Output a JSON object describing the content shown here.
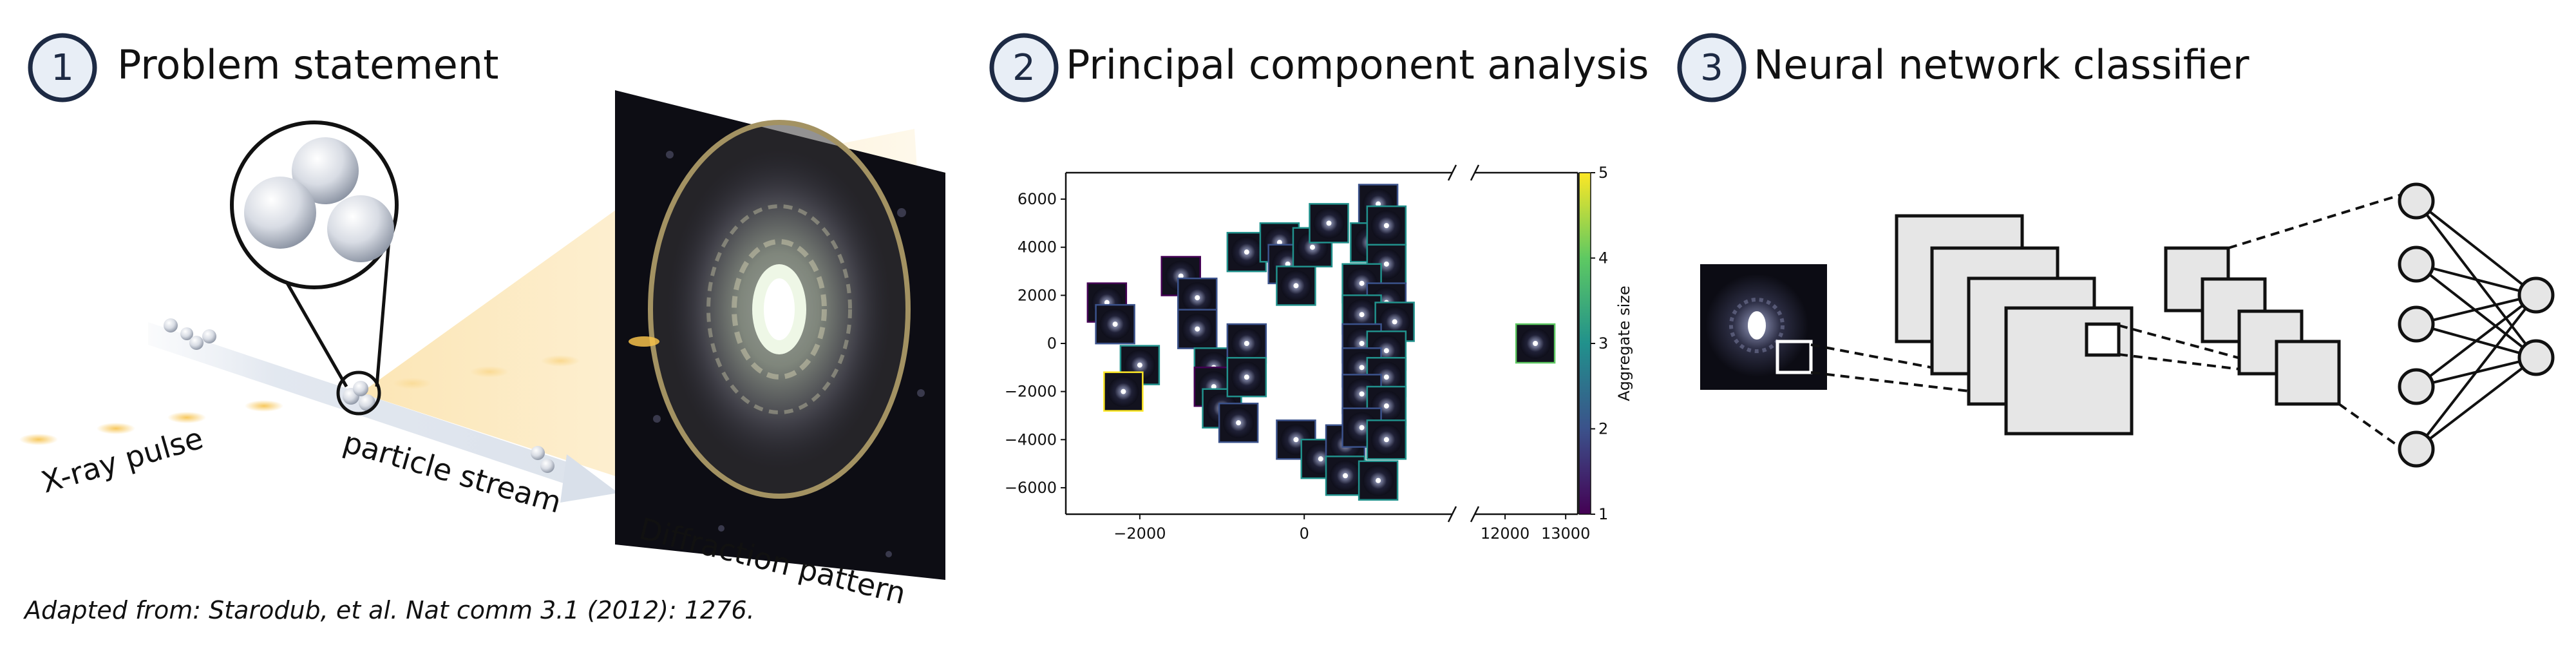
{
  "panels": [
    {
      "number": "1",
      "title": "Problem statement"
    },
    {
      "number": "2",
      "title": "Principal component analysis"
    },
    {
      "number": "3",
      "title": "Neural network classifier"
    }
  ],
  "labels": {
    "xray": "X-ray pulse",
    "stream": "particle stream",
    "diffraction": "Diffraction pattern"
  },
  "footnote": "Adapted from: Starodub, et al. Nat comm 3.1 (2012): 1276.",
  "colors": {
    "circle_stroke": "#1d2a44",
    "beam": "#f6c14a",
    "stream": "#dde4ee",
    "panel_fill": "#e6e6e6",
    "detector": "#0d0d14"
  },
  "chart_data": {
    "type": "scatter",
    "title": "",
    "xlabel": "",
    "ylabel": "",
    "xlim_main": [
      -2900,
      1800
    ],
    "xlim_break": [
      11500,
      13200
    ],
    "ylim": [
      -7100,
      7100
    ],
    "x_ticks": [
      -2000,
      0,
      12000,
      13000
    ],
    "x_tick_labels": [
      "−2000",
      "0",
      "12000",
      "13000"
    ],
    "y_ticks": [
      6000,
      4000,
      2000,
      0,
      -2000,
      -4000,
      -6000
    ],
    "y_tick_labels": [
      "6000",
      "4000",
      "2000",
      "0",
      "−2000",
      "−4000",
      "−6000"
    ],
    "axis_break": true,
    "marker": "diffraction-thumbnail",
    "colorbar": {
      "label": "Aggregate size",
      "ticks": [
        1,
        2,
        3,
        4,
        5
      ],
      "tick_labels": [
        "1",
        "2",
        "3",
        "4",
        "5"
      ],
      "colormap": [
        "#440154",
        "#3b528b",
        "#21918c",
        "#5ec962",
        "#fde725"
      ]
    },
    "points": [
      {
        "x": -2400,
        "y": 1700,
        "size": 1
      },
      {
        "x": -2300,
        "y": 800,
        "size": 2
      },
      {
        "x": -2000,
        "y": -900,
        "size": 3
      },
      {
        "x": -2200,
        "y": -2000,
        "size": 5
      },
      {
        "x": -1500,
        "y": 2800,
        "size": 1
      },
      {
        "x": -1300,
        "y": 1900,
        "size": 2
      },
      {
        "x": -1300,
        "y": 600,
        "size": 2
      },
      {
        "x": -1100,
        "y": -1000,
        "size": 3
      },
      {
        "x": -1100,
        "y": -1800,
        "size": 1
      },
      {
        "x": -1000,
        "y": -2700,
        "size": 3
      },
      {
        "x": -700,
        "y": 3800,
        "size": 3
      },
      {
        "x": -700,
        "y": 0,
        "size": 2
      },
      {
        "x": -700,
        "y": -1400,
        "size": 3
      },
      {
        "x": -800,
        "y": -3300,
        "size": 2
      },
      {
        "x": -300,
        "y": 4200,
        "size": 3
      },
      {
        "x": -200,
        "y": 3300,
        "size": 2
      },
      {
        "x": -100,
        "y": 2400,
        "size": 3
      },
      {
        "x": 100,
        "y": 4000,
        "size": 3
      },
      {
        "x": 300,
        "y": 5000,
        "size": 3
      },
      {
        "x": -100,
        "y": -4000,
        "size": 2
      },
      {
        "x": 200,
        "y": -4800,
        "size": 3
      },
      {
        "x": 500,
        "y": -4200,
        "size": 2
      },
      {
        "x": 500,
        "y": -5500,
        "size": 3
      },
      {
        "x": 900,
        "y": 5800,
        "size": 2
      },
      {
        "x": 800,
        "y": 4200,
        "size": 3
      },
      {
        "x": 1000,
        "y": 4900,
        "size": 3
      },
      {
        "x": 1000,
        "y": 3300,
        "size": 3
      },
      {
        "x": 700,
        "y": 2500,
        "size": 3
      },
      {
        "x": 1000,
        "y": 1700,
        "size": 2
      },
      {
        "x": 700,
        "y": 1200,
        "size": 3
      },
      {
        "x": 1100,
        "y": 900,
        "size": 3
      },
      {
        "x": 700,
        "y": 0,
        "size": 2
      },
      {
        "x": 1000,
        "y": -300,
        "size": 3
      },
      {
        "x": 700,
        "y": -1000,
        "size": 2
      },
      {
        "x": 1000,
        "y": -1400,
        "size": 3
      },
      {
        "x": 700,
        "y": -2100,
        "size": 2
      },
      {
        "x": 1000,
        "y": -2600,
        "size": 3
      },
      {
        "x": 700,
        "y": -3500,
        "size": 2
      },
      {
        "x": 1000,
        "y": -4000,
        "size": 3
      },
      {
        "x": 900,
        "y": -5700,
        "size": 3
      },
      {
        "x": 12500,
        "y": 0,
        "size": 4
      }
    ]
  }
}
